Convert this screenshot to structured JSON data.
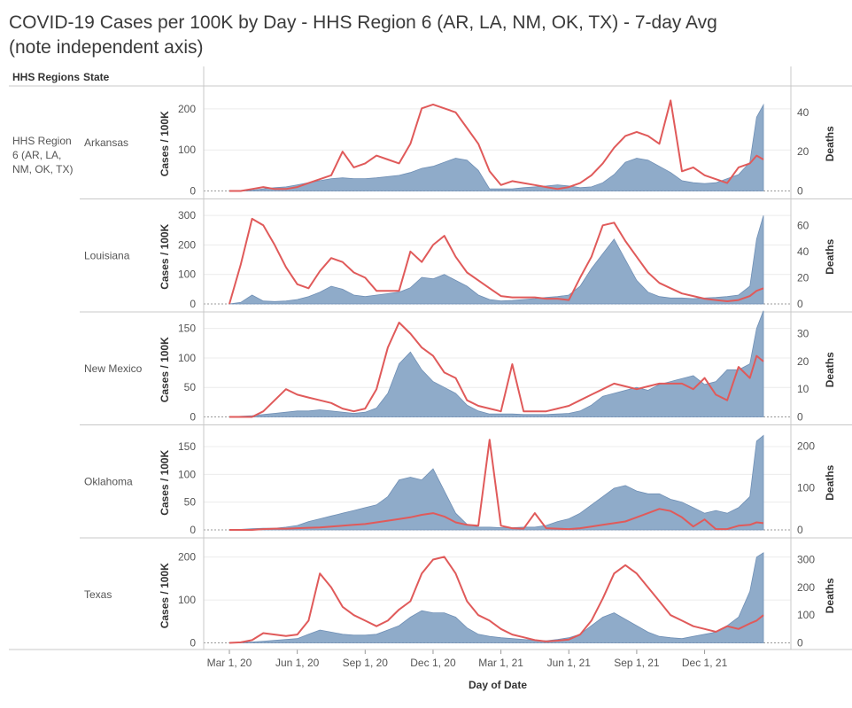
{
  "title_line1": "COVID-19 Cases per 100K by Day - HHS Region 6 (AR, LA, NM, OK, TX) - 7-day Avg",
  "title_line2": "(note independent axis)",
  "headers": {
    "region": "HHS Regions",
    "state": "State"
  },
  "region_label": [
    "HHS Region",
    "6 (AR, LA,",
    "NM, OK, TX)"
  ],
  "colors": {
    "area": "#8fabc9",
    "area_stroke": "#6f8fb5",
    "line": "#e05a5a",
    "grid": "#ececec",
    "border": "#c8c8c8"
  },
  "chart_data": {
    "type": "area",
    "xlabel": "Day of Date",
    "x_ticks": [
      "Mar 1, 20",
      "Jun 1, 20",
      "Sep 1, 20",
      "Dec 1, 20",
      "Mar 1, 21",
      "Jun 1, 21",
      "Sep 1, 21",
      "Dec 1, 21"
    ],
    "x_tick_months": [
      0,
      3,
      6,
      9,
      12,
      15,
      18,
      21
    ],
    "x_range_months": [
      0,
      23.6
    ],
    "x_samples_months": [
      0,
      0.5,
      1,
      1.5,
      2,
      2.5,
      3,
      3.5,
      4,
      4.5,
      5,
      5.5,
      6,
      6.5,
      7,
      7.5,
      8,
      8.5,
      9,
      9.5,
      10,
      10.5,
      11,
      11.5,
      12,
      12.5,
      13,
      13.5,
      14,
      14.5,
      15,
      15.5,
      16,
      16.5,
      17,
      17.5,
      18,
      18.5,
      19,
      19.5,
      20,
      20.5,
      21,
      21.5,
      22,
      22.5,
      23,
      23.3,
      23.6
    ],
    "panels": [
      {
        "state": "Arkansas",
        "left_axis": "Cases / 100K",
        "right_axis": "Deaths",
        "left_ticks": [
          0,
          100,
          200
        ],
        "left_max": 230,
        "right_ticks": [
          0,
          20,
          40
        ],
        "right_max": 48,
        "cases": [
          0,
          1,
          2,
          5,
          8,
          10,
          15,
          20,
          25,
          30,
          32,
          30,
          30,
          32,
          35,
          38,
          45,
          55,
          60,
          70,
          80,
          75,
          50,
          5,
          5,
          5,
          8,
          10,
          12,
          15,
          12,
          8,
          10,
          20,
          40,
          70,
          80,
          75,
          60,
          45,
          25,
          20,
          18,
          20,
          30,
          40,
          70,
          180,
          210
        ],
        "deaths": [
          0,
          0,
          1,
          2,
          1,
          1,
          2,
          4,
          6,
          8,
          20,
          12,
          14,
          18,
          16,
          14,
          24,
          42,
          44,
          42,
          40,
          32,
          24,
          10,
          3,
          5,
          4,
          3,
          2,
          1,
          2,
          4,
          8,
          14,
          22,
          28,
          30,
          28,
          24,
          46,
          10,
          12,
          8,
          6,
          4,
          12,
          14,
          18,
          16
        ]
      },
      {
        "state": "Louisiana",
        "left_axis": "Cases / 100K",
        "right_axis": "Deaths",
        "left_ticks": [
          0,
          100,
          200,
          300
        ],
        "left_max": 320,
        "right_ticks": [
          0,
          20,
          40,
          60
        ],
        "right_max": 72,
        "cases": [
          0,
          5,
          30,
          10,
          8,
          10,
          15,
          25,
          40,
          60,
          50,
          30,
          25,
          30,
          35,
          40,
          55,
          90,
          85,
          100,
          80,
          60,
          30,
          15,
          10,
          12,
          15,
          18,
          22,
          25,
          30,
          60,
          120,
          170,
          220,
          150,
          80,
          40,
          25,
          20,
          20,
          18,
          20,
          22,
          25,
          30,
          60,
          220,
          300
        ],
        "deaths": [
          0,
          30,
          65,
          60,
          45,
          28,
          15,
          12,
          25,
          35,
          32,
          24,
          20,
          10,
          10,
          10,
          40,
          32,
          45,
          52,
          36,
          24,
          18,
          12,
          6,
          5,
          5,
          5,
          4,
          4,
          3,
          20,
          36,
          60,
          62,
          48,
          36,
          24,
          16,
          12,
          8,
          6,
          4,
          3,
          2,
          3,
          6,
          10,
          12
        ]
      },
      {
        "state": "New Mexico",
        "left_axis": "Cases / 100K",
        "right_axis": "Deaths",
        "left_ticks": [
          0,
          50,
          100,
          150
        ],
        "left_max": 160,
        "right_ticks": [
          0,
          10,
          20,
          30
        ],
        "right_max": 34,
        "cases": [
          0,
          1,
          2,
          4,
          6,
          8,
          10,
          10,
          12,
          10,
          8,
          6,
          8,
          15,
          40,
          90,
          110,
          80,
          60,
          50,
          40,
          20,
          10,
          5,
          5,
          5,
          4,
          4,
          4,
          5,
          6,
          10,
          20,
          35,
          40,
          45,
          50,
          45,
          55,
          60,
          65,
          70,
          55,
          60,
          80,
          80,
          90,
          150,
          180
        ],
        "deaths": [
          0,
          0,
          0,
          2,
          6,
          10,
          8,
          7,
          6,
          5,
          3,
          2,
          3,
          10,
          25,
          34,
          30,
          25,
          22,
          16,
          14,
          6,
          4,
          3,
          2,
          19,
          2,
          2,
          2,
          3,
          4,
          6,
          8,
          10,
          12,
          11,
          10,
          11,
          12,
          12,
          12,
          10,
          14,
          8,
          6,
          18,
          14,
          22,
          20
        ]
      },
      {
        "state": "Oklahoma",
        "left_axis": "Cases / 100K",
        "right_axis": "Deaths",
        "left_ticks": [
          0,
          50,
          100,
          150
        ],
        "left_max": 170,
        "right_ticks": [
          0,
          100,
          200
        ],
        "right_max": 225,
        "cases": [
          0,
          1,
          2,
          3,
          3,
          5,
          8,
          15,
          20,
          25,
          30,
          35,
          40,
          45,
          60,
          90,
          95,
          90,
          110,
          70,
          30,
          10,
          5,
          5,
          4,
          4,
          5,
          5,
          8,
          15,
          20,
          30,
          45,
          60,
          75,
          80,
          70,
          65,
          65,
          55,
          50,
          40,
          30,
          35,
          30,
          40,
          60,
          160,
          170
        ],
        "deaths": [
          0,
          0,
          0,
          2,
          3,
          3,
          4,
          5,
          6,
          8,
          10,
          12,
          14,
          18,
          22,
          26,
          30,
          36,
          40,
          32,
          18,
          12,
          10,
          215,
          10,
          4,
          3,
          40,
          4,
          3,
          2,
          4,
          8,
          12,
          16,
          20,
          30,
          40,
          50,
          45,
          30,
          8,
          25,
          2,
          2,
          10,
          12,
          18,
          16
        ]
      },
      {
        "state": "Texas",
        "left_axis": "Cases / 100K",
        "right_axis": "Deaths",
        "left_ticks": [
          0,
          100,
          200
        ],
        "left_max": 220,
        "right_ticks": [
          0,
          100,
          200,
          300
        ],
        "right_max": 340,
        "cases": [
          0,
          1,
          2,
          4,
          6,
          8,
          10,
          20,
          30,
          25,
          20,
          18,
          18,
          20,
          30,
          40,
          60,
          75,
          70,
          70,
          60,
          35,
          20,
          15,
          12,
          10,
          8,
          6,
          5,
          8,
          12,
          20,
          40,
          60,
          70,
          55,
          40,
          25,
          15,
          12,
          10,
          15,
          20,
          25,
          40,
          60,
          120,
          200,
          210
        ],
        "deaths": [
          0,
          2,
          10,
          35,
          30,
          25,
          30,
          80,
          250,
          200,
          130,
          100,
          80,
          60,
          80,
          120,
          150,
          250,
          300,
          310,
          250,
          150,
          100,
          80,
          50,
          30,
          20,
          10,
          5,
          8,
          12,
          30,
          80,
          160,
          250,
          280,
          250,
          200,
          150,
          100,
          80,
          60,
          50,
          40,
          60,
          50,
          70,
          80,
          100
        ]
      }
    ]
  }
}
